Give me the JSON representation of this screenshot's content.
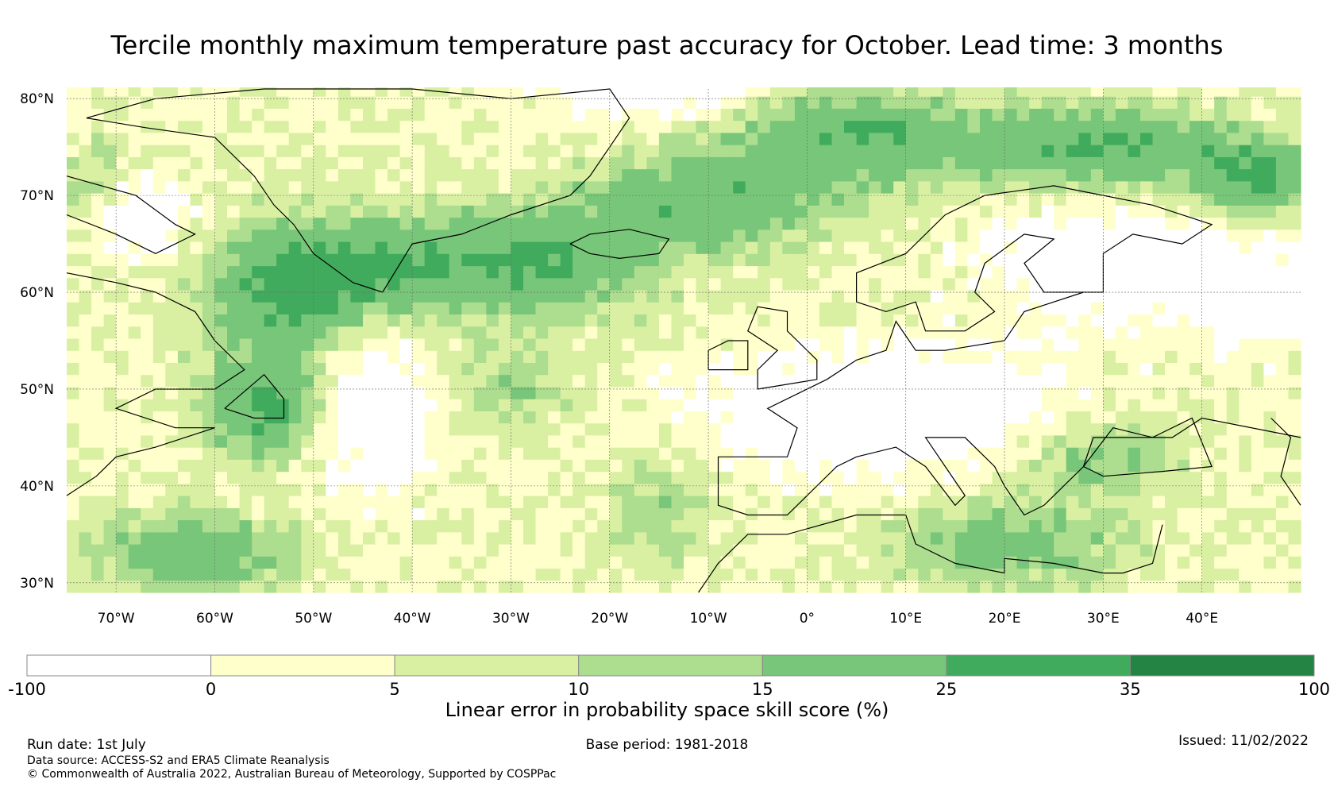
{
  "title": "Tercile monthly maximum temperature past accuracy for October. Lead time: 3 months",
  "map": {
    "lat_labels": [
      "80°N",
      "70°N",
      "60°N",
      "50°N",
      "40°N",
      "30°N"
    ],
    "lat_values": [
      80,
      70,
      60,
      50,
      40,
      30
    ],
    "lon_labels": [
      "70°W",
      "60°W",
      "50°W",
      "40°W",
      "30°W",
      "20°W",
      "10°W",
      "0°",
      "10°E",
      "20°E",
      "30°E",
      "40°E"
    ],
    "lon_values": [
      -70,
      -60,
      -50,
      -40,
      -30,
      -20,
      -10,
      0,
      10,
      20,
      30,
      40
    ],
    "lon_range": [
      -75,
      50
    ],
    "lat_range": [
      29,
      81
    ],
    "grid": true
  },
  "colorbar": {
    "boundaries": [
      "-100",
      "0",
      "5",
      "10",
      "15",
      "25",
      "35",
      "100"
    ],
    "colors": [
      "#ffffff",
      "#ffffcc",
      "#d9f0a3",
      "#addd8e",
      "#78c679",
      "#41ab5d",
      "#238443"
    ],
    "label": "Linear error in probability space skill score (%)"
  },
  "footer": {
    "run_date": "Run date: 1st July",
    "base_period": "Base period: 1981-2018",
    "issued": "Issued: 11/02/2022",
    "data_source": "Data source: ACCESS-S2 and ERA5 Climate Reanalysis",
    "copyright": "© Commonwealth of Australia 2022, Australian Bureau of Meteorology, Supported by COSPPac"
  }
}
